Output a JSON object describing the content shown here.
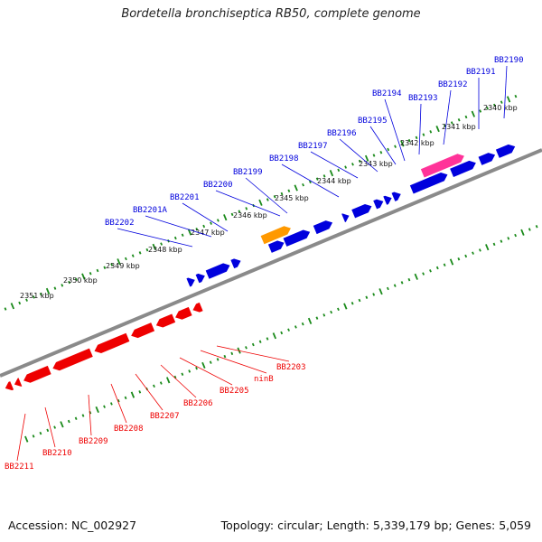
{
  "title": "Bordetella bronchiseptica RB50, complete genome",
  "footer": {
    "accession": "Accession: NC_002927",
    "stats": "Topology: circular; Length: 5,339,179 bp; Genes: 5,059"
  },
  "colors": {
    "forward": "#0000dd",
    "reverse": "#ee0000",
    "orange_feature": "#ff9900",
    "pink_feature": "#ff3399",
    "backbone": "#8a8a8a",
    "ticks": "#1a8a1a"
  },
  "kbp_labels": [
    "2340 kbp",
    "2341 kbp",
    "2342 kbp",
    "2343 kbp",
    "2344 kbp",
    "2345 kbp",
    "2346 kbp",
    "2347 kbp",
    "2348 kbp",
    "2349 kbp",
    "2350 kbp",
    "2351 kbp"
  ],
  "forward_genes": [
    "BB2190",
    "BB2191",
    "BB2192",
    "BB2193",
    "BB2194",
    "BB2195",
    "BB2196",
    "BB2197",
    "BB2198",
    "BB2199",
    "BB2200",
    "BB2201",
    "BB2201A",
    "BB2202"
  ],
  "reverse_genes": [
    "BB2203",
    "ninB",
    "BB2205",
    "BB2206",
    "BB2207",
    "BB2208",
    "BB2209",
    "BB2210",
    "BB2211"
  ]
}
